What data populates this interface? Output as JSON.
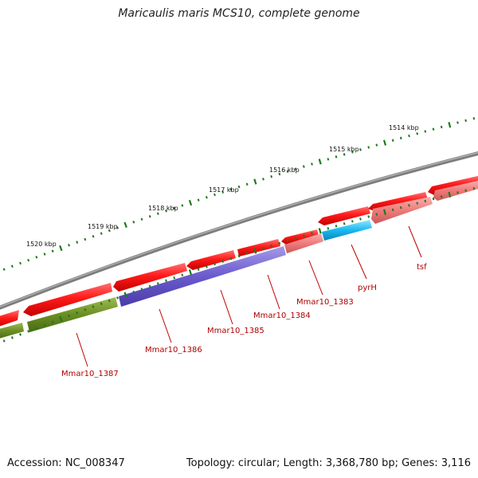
{
  "title": "Maricaulis maris MCS10, complete genome",
  "footer": {
    "accession": "Accession: NC_008347",
    "summary": "Topology: circular; Length: 3,368,780 bp; Genes: 3,116"
  },
  "ruler": {
    "labels": [
      "1514 kbp",
      "1515 kbp",
      "1516 kbp",
      "1517 kbp",
      "1518 kbp",
      "1519 kbp",
      "1520 kbp"
    ],
    "color": "#1e7a1e"
  },
  "genes": {
    "labels": [
      "tsf",
      "pyrH",
      "Mmar10_1383",
      "Mmar10_1384",
      "Mmar10_1385",
      "Mmar10_1386",
      "Mmar10_1387"
    ],
    "colors": {
      "cds": "#ff1a1a",
      "tsf": "#f07a7a",
      "pyrH": "#19b8f0",
      "Mmar10_1383": "#f07a7a",
      "Mmar10_1385": "#6a5acd",
      "Mmar10_1386": "#6a5acd",
      "Mmar10_1387": "#6b8e23",
      "backbone": "#808080"
    }
  }
}
